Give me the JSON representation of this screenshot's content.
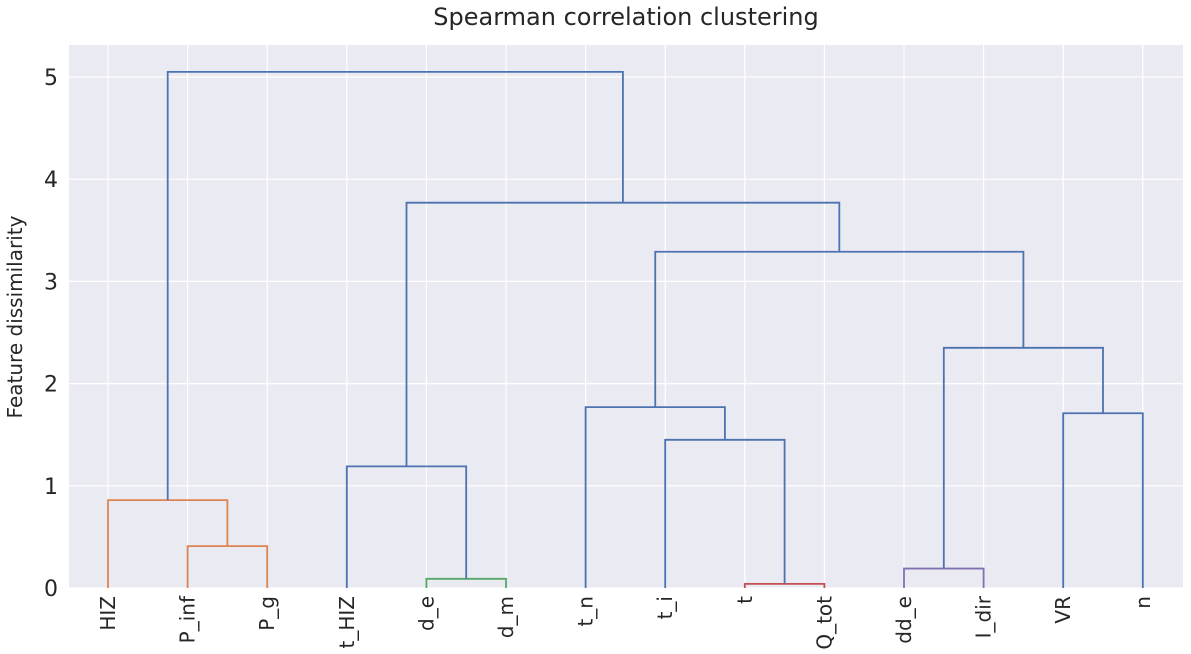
{
  "chart_data": {
    "type": "dendrogram",
    "title": "Spearman correlation clustering",
    "xlabel": "",
    "ylabel": "Feature dissimilarity",
    "ylim": [
      0,
      5.3
    ],
    "yticks": [
      0,
      1,
      2,
      3,
      4,
      5
    ],
    "grid": true,
    "leaves": [
      "HIZ",
      "P_inf",
      "P_g",
      "t_HIZ",
      "d_e",
      "d_m",
      "t_n",
      "t_i",
      "t",
      "Q_tot",
      "dd_e",
      "I_dir",
      "VR",
      "n"
    ],
    "colors": {
      "default": "#4c72b0",
      "orange": "#dd8452",
      "green": "#55a868",
      "red": "#c44e52",
      "purple": "#8172b3",
      "background": "#eaeaf2",
      "grid": "#ffffff",
      "text": "#262626"
    },
    "links": [
      {
        "left_x": 1,
        "left_y": 0,
        "right_x": 2,
        "right_y": 0,
        "height": 0.41,
        "color": "orange"
      },
      {
        "left_x": 0,
        "left_y": 0,
        "right_x": 1.5,
        "right_y": 0.41,
        "height": 0.86,
        "color": "orange"
      },
      {
        "left_x": 4,
        "left_y": 0,
        "right_x": 5,
        "right_y": 0,
        "height": 0.09,
        "color": "green"
      },
      {
        "left_x": 3,
        "left_y": 0,
        "right_x": 4.5,
        "right_y": 0.09,
        "height": 1.19,
        "color": "default"
      },
      {
        "left_x": 8,
        "left_y": 0,
        "right_x": 9,
        "right_y": 0,
        "height": 0.04,
        "color": "red"
      },
      {
        "left_x": 7,
        "left_y": 0,
        "right_x": 8.5,
        "right_y": 0.04,
        "height": 1.45,
        "color": "default"
      },
      {
        "left_x": 6,
        "left_y": 0,
        "right_x": 7.75,
        "right_y": 1.45,
        "height": 1.77,
        "color": "default"
      },
      {
        "left_x": 10,
        "left_y": 0,
        "right_x": 11,
        "right_y": 0,
        "height": 0.19,
        "color": "purple"
      },
      {
        "left_x": 12,
        "left_y": 0,
        "right_x": 13,
        "right_y": 0,
        "height": 1.71,
        "color": "default"
      },
      {
        "left_x": 10.5,
        "left_y": 0.19,
        "right_x": 12.5,
        "right_y": 1.71,
        "height": 2.35,
        "color": "default"
      },
      {
        "left_x": 6.875,
        "left_y": 1.77,
        "right_x": 11.5,
        "right_y": 2.35,
        "height": 3.29,
        "color": "default"
      },
      {
        "left_x": 3.75,
        "left_y": 1.19,
        "right_x": 9.1875,
        "right_y": 3.29,
        "height": 3.77,
        "color": "default"
      },
      {
        "left_x": 0.75,
        "left_y": 0.86,
        "right_x": 6.46875,
        "right_y": 3.77,
        "height": 5.05,
        "color": "default"
      }
    ]
  }
}
